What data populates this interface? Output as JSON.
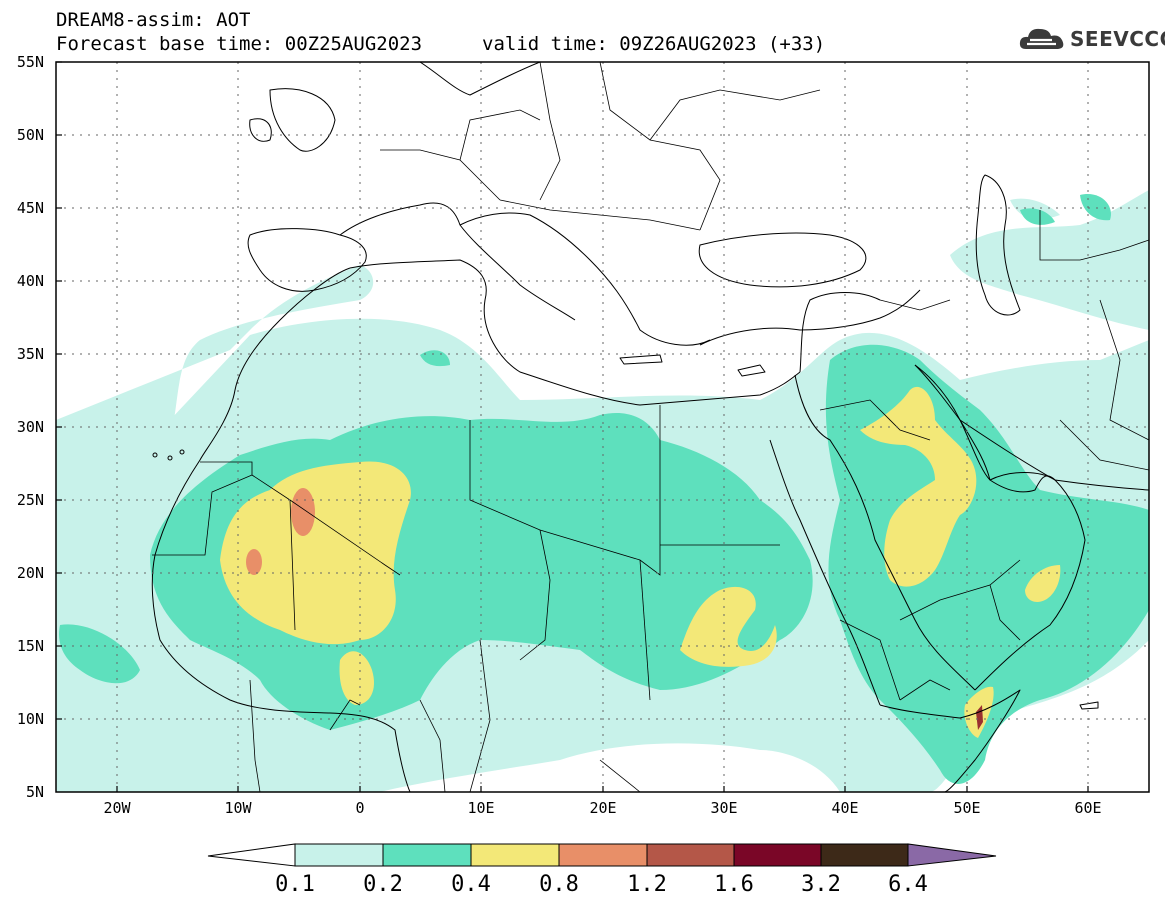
{
  "header": {
    "title": "DREAM8-assim: AOT",
    "base_time": "Forecast base time: 00Z25AUG2023",
    "valid_time": "valid time: 09Z26AUG2023 (+33)"
  },
  "logo": {
    "icon": "cloud-icon",
    "text": "SEEVCCC"
  },
  "map": {
    "projection": "equirectangular",
    "lon_range": [
      -25,
      65
    ],
    "lat_range": [
      5,
      55
    ],
    "y_ticks": [
      "55N",
      "50N",
      "45N",
      "40N",
      "35N",
      "30N",
      "25N",
      "20N",
      "15N",
      "10N",
      "5N"
    ],
    "x_ticks": [
      "20W",
      "10W",
      "0",
      "10E",
      "20E",
      "30E",
      "40E",
      "50E",
      "60E"
    ],
    "grid": "dotted"
  },
  "colorbar": {
    "labels": [
      "0.1",
      "0.2",
      "0.4",
      "0.8",
      "1.2",
      "1.6",
      "3.2",
      "6.4"
    ],
    "colors": [
      "#ffffff",
      "#c8f2ea",
      "#5ee0bd",
      "#f3e878",
      "#e88f68",
      "#b45748",
      "#7a0627",
      "#3d2918",
      "#8a69a6"
    ]
  },
  "fields": {
    "0.1": "#c8f2ea",
    "0.2": "#5ee0bd",
    "0.4": "#f3e878",
    "0.8": "#e88f68",
    "1.6": "#9a3030"
  },
  "aux": {
    "coast": "#000000",
    "grid": "#666666"
  }
}
